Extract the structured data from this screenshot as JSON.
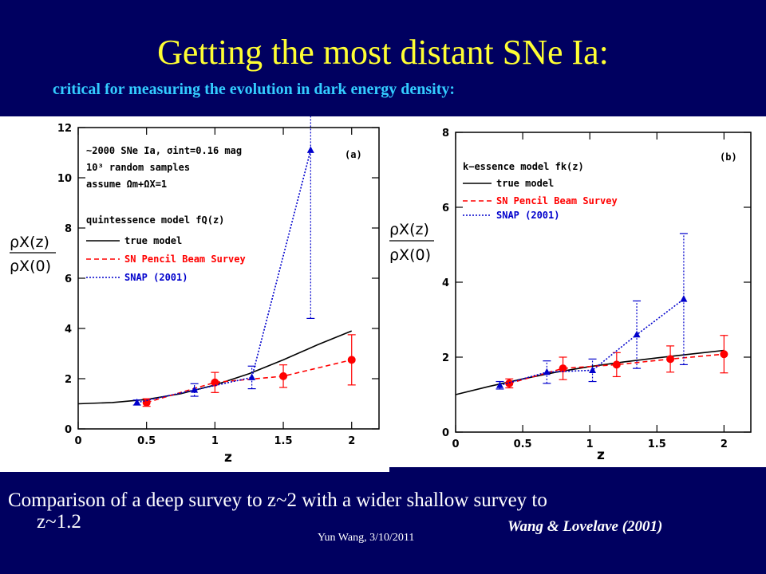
{
  "slide": {
    "title": "Getting the most distant SNe Ia:",
    "subtitle": "critical for measuring the evolution in dark energy density:",
    "caption_line1": "Comparison of a deep survey to z~2 with a wider shallow survey to",
    "caption_line2": "z~1.2",
    "credit": "Wang & Lovelave (2001)",
    "footer": "Yun Wang, 3/10/2011",
    "colors": {
      "background": "#000060",
      "title": "#ffff33",
      "subtitle": "#33ccff",
      "true_model": "#000000",
      "pencil_beam": "#ff0000",
      "snap": "#0000cc"
    }
  },
  "chart_data": [
    {
      "type": "scatter",
      "panel_label": "(a)",
      "xlabel": "z",
      "ylabel_num": "ρX(z)",
      "ylabel_den": "ρX(0)",
      "xlim": [
        0,
        2.2
      ],
      "ylim": [
        0,
        12
      ],
      "xticks": [
        0,
        0.5,
        1,
        1.5,
        2
      ],
      "xtick_labels": [
        "0",
        "0.5",
        "1",
        "1.5",
        "2"
      ],
      "yticks": [
        0,
        2,
        4,
        6,
        8,
        10,
        12
      ],
      "ytick_labels": [
        "0",
        "2",
        "4",
        "6",
        "8",
        "10",
        "12"
      ],
      "info_lines": [
        "~2000 SNe Ia, σint=0.16 mag",
        "10³ random samples",
        "assume Ωm+ΩX=1"
      ],
      "model_label": "quintessence model fQ(z)",
      "series": [
        {
          "name": "true model",
          "kind": "curve",
          "x": [
            0,
            0.25,
            0.5,
            0.75,
            1.0,
            1.25,
            1.5,
            1.75,
            2.0
          ],
          "y": [
            1.0,
            1.05,
            1.17,
            1.4,
            1.75,
            2.2,
            2.75,
            3.35,
            3.9
          ]
        },
        {
          "name": "SN Pencil Beam Survey",
          "kind": "points",
          "x": [
            0.5,
            1.0,
            1.5,
            2.0
          ],
          "y": [
            1.05,
            1.85,
            2.1,
            2.75
          ],
          "err": [
            0.15,
            0.4,
            0.45,
            1.0
          ]
        },
        {
          "name": "SNAP (2001)",
          "kind": "points",
          "x": [
            0.43,
            0.85,
            1.27,
            1.7
          ],
          "y": [
            1.05,
            1.55,
            2.05,
            11.1
          ],
          "err": [
            0.1,
            0.25,
            0.45,
            6.7
          ]
        }
      ]
    },
    {
      "type": "scatter",
      "panel_label": "(b)",
      "xlabel": "z",
      "ylabel_num": "ρX(z)",
      "ylabel_den": "ρX(0)",
      "xlim": [
        0,
        2.2
      ],
      "ylim": [
        0,
        8
      ],
      "xticks": [
        0,
        0.5,
        1,
        1.5,
        2
      ],
      "xtick_labels": [
        "0",
        "0.5",
        "1",
        "1.5",
        "2"
      ],
      "yticks": [
        0,
        2,
        4,
        6,
        8
      ],
      "ytick_labels": [
        "0",
        "2",
        "4",
        "6",
        "8"
      ],
      "model_label": "k−essence model fk(z)",
      "series": [
        {
          "name": "true model",
          "kind": "curve",
          "x": [
            0,
            0.25,
            0.5,
            0.75,
            1.0,
            1.25,
            1.5,
            1.75,
            2.0
          ],
          "y": [
            1.0,
            1.22,
            1.42,
            1.6,
            1.75,
            1.87,
            1.98,
            2.08,
            2.18
          ]
        },
        {
          "name": "SN Pencil Beam Survey",
          "kind": "points",
          "x": [
            0.4,
            0.8,
            1.2,
            1.6,
            2.0
          ],
          "y": [
            1.3,
            1.7,
            1.8,
            1.95,
            2.08
          ],
          "err": [
            0.12,
            0.3,
            0.32,
            0.35,
            0.5
          ]
        },
        {
          "name": "SNAP (2001)",
          "kind": "points",
          "x": [
            0.33,
            0.68,
            1.02,
            1.35,
            1.7
          ],
          "y": [
            1.25,
            1.6,
            1.65,
            2.6,
            3.55
          ],
          "err": [
            0.1,
            0.3,
            0.3,
            0.9,
            1.75
          ]
        }
      ]
    }
  ]
}
